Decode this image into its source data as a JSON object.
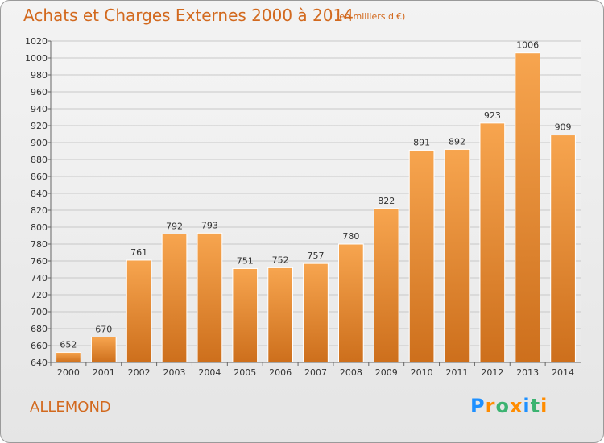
{
  "header": {
    "title": "Achats et Charges Externes 2000 à 2014",
    "unit_note": "(en milliers d'€)"
  },
  "footer": {
    "commune": "ALLEMOND",
    "logo_text": "Proxiti",
    "logo_colors": [
      "#1e90ff",
      "#ff8c00",
      "#3cb371",
      "#ff8c00",
      "#1e90ff",
      "#3cb371",
      "#ff8c00"
    ]
  },
  "colors": {
    "bar_light": "#f7a54f",
    "bar_dark": "#cd6f1c",
    "text_accent": "#d2691e",
    "grid": "#c8c8c8"
  },
  "chart_data": {
    "type": "bar",
    "title": "Achats et Charges Externes 2000 à 2014",
    "subtitle": "(en milliers d'€)",
    "xlabel": "",
    "ylabel": "",
    "categories": [
      "2000",
      "2001",
      "2002",
      "2003",
      "2004",
      "2005",
      "2006",
      "2007",
      "2008",
      "2009",
      "2010",
      "2011",
      "2012",
      "2013",
      "2014"
    ],
    "values": [
      652,
      670,
      761,
      792,
      793,
      751,
      752,
      757,
      780,
      822,
      891,
      892,
      923,
      1006,
      909
    ],
    "ylim": [
      640,
      1020
    ],
    "yticks": [
      640,
      660,
      680,
      700,
      720,
      740,
      760,
      780,
      800,
      820,
      840,
      860,
      880,
      900,
      920,
      940,
      960,
      980,
      1000,
      1020
    ],
    "grid": true,
    "legend": "none"
  }
}
